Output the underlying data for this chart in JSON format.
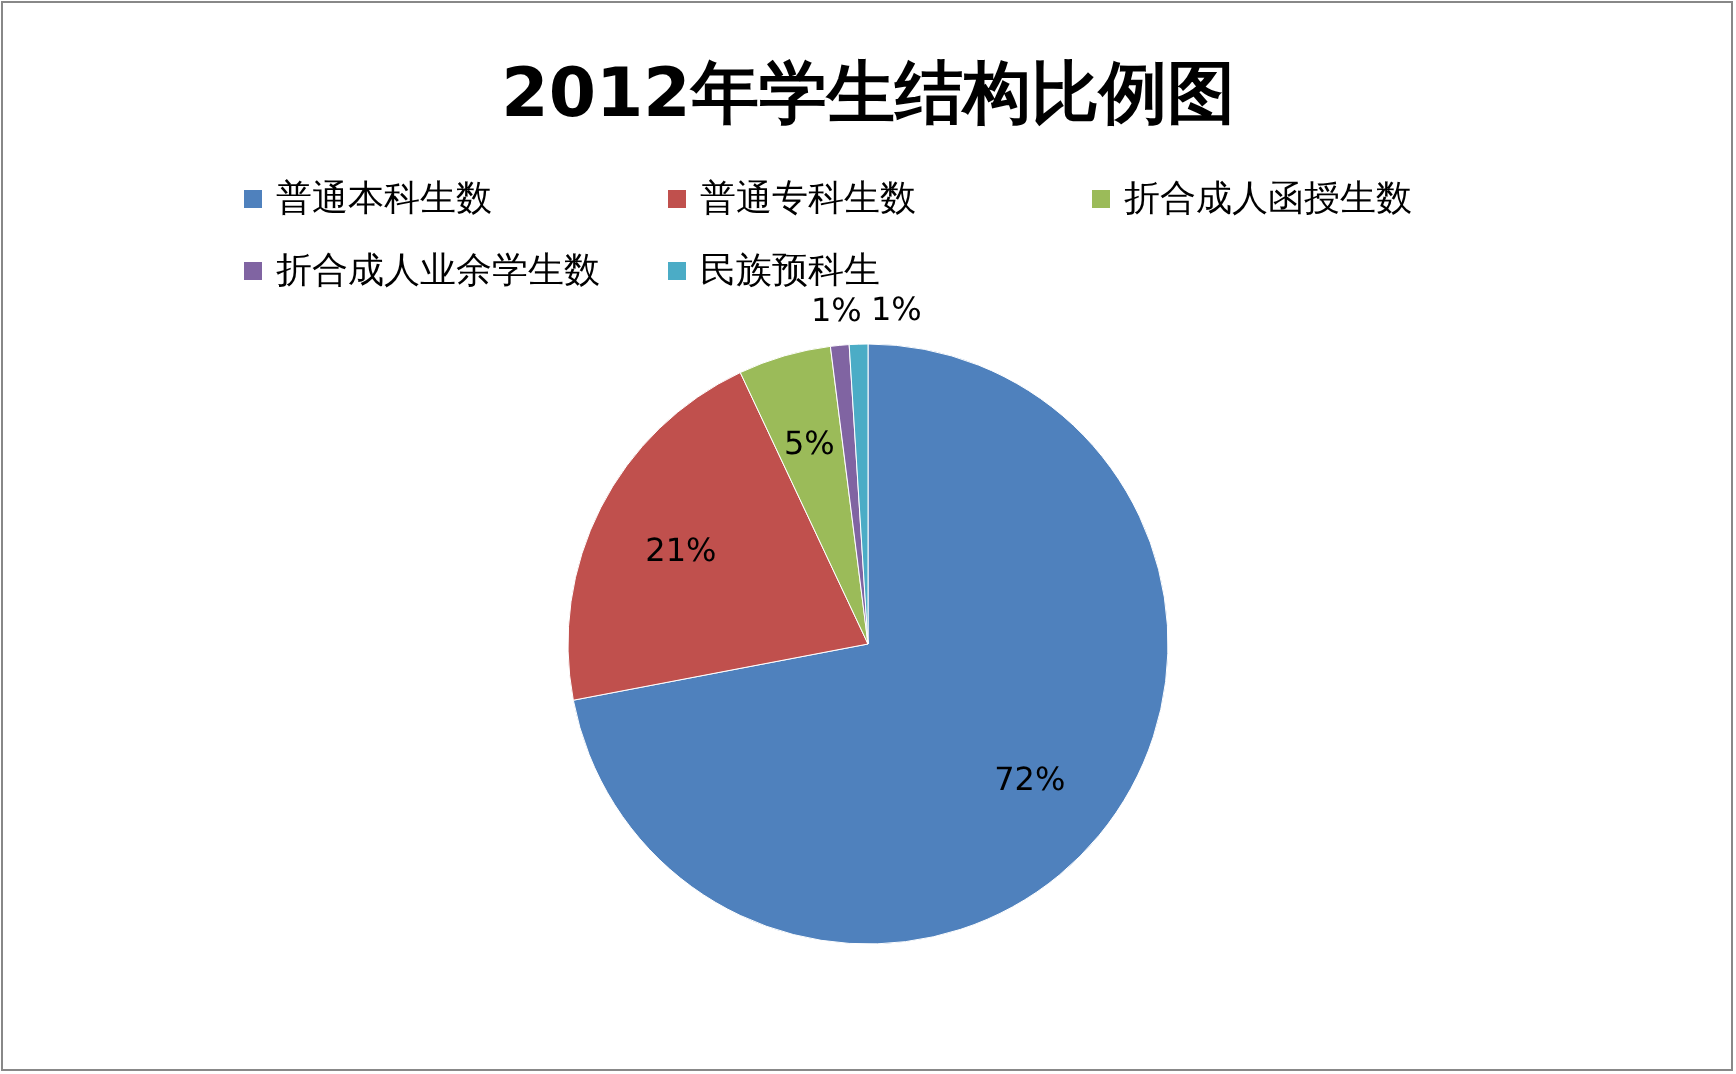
{
  "chart_data": {
    "type": "pie",
    "title": "2012年学生结构比例图",
    "categories": [
      "普通本科生数",
      "普通专科生数",
      "折合成人函授生数",
      "折合成人业余学生数",
      "民族预科生"
    ],
    "values": [
      72,
      21,
      5,
      1,
      1
    ],
    "colors": [
      "#4f81bd",
      "#c0504d",
      "#9bbb59",
      "#8064a2",
      "#4bacc6"
    ],
    "value_labels": [
      "72%",
      "21%",
      "5%",
      "1%",
      "1%"
    ],
    "legend": "top"
  }
}
